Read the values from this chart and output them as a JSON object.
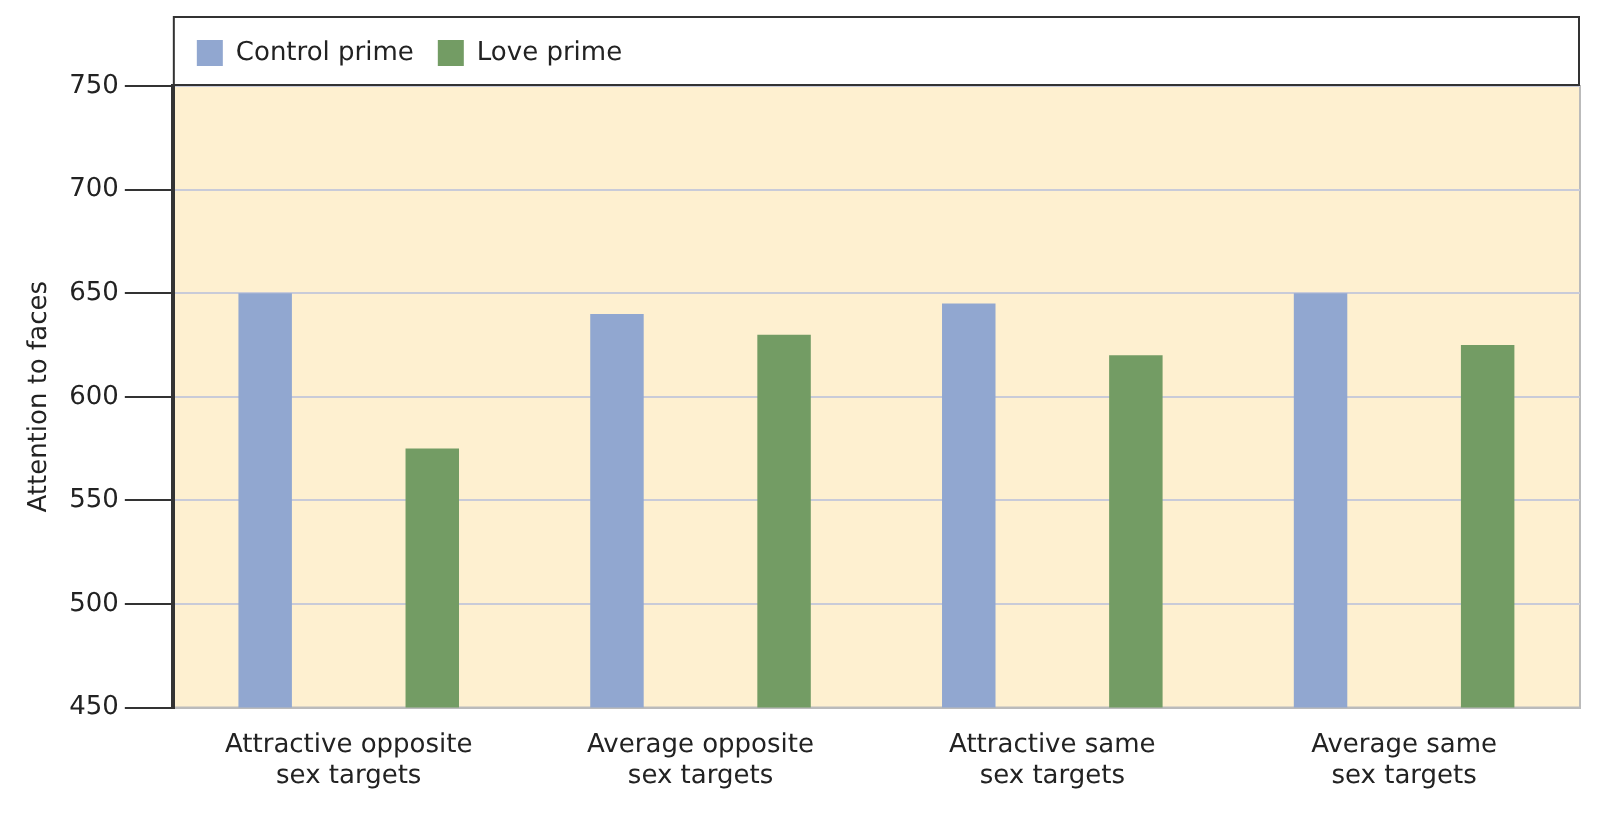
{
  "chart_data": {
    "type": "bar",
    "ylabel": "Attention to faces",
    "categories": [
      "Attractive opposite sex targets",
      "Average opposite sex targets",
      "Attractive same sex targets",
      "Average same sex targets"
    ],
    "series": [
      {
        "name": "Control prime",
        "color": "#91a7d0",
        "values": [
          650,
          640,
          645,
          650
        ]
      },
      {
        "name": "Love prime",
        "color": "#739c64",
        "values": [
          575,
          630,
          620,
          625
        ]
      }
    ],
    "ylim": [
      450,
      750
    ],
    "yticks": [
      450,
      500,
      550,
      600,
      650,
      700,
      750
    ],
    "grid": "y",
    "legend": "top left"
  }
}
